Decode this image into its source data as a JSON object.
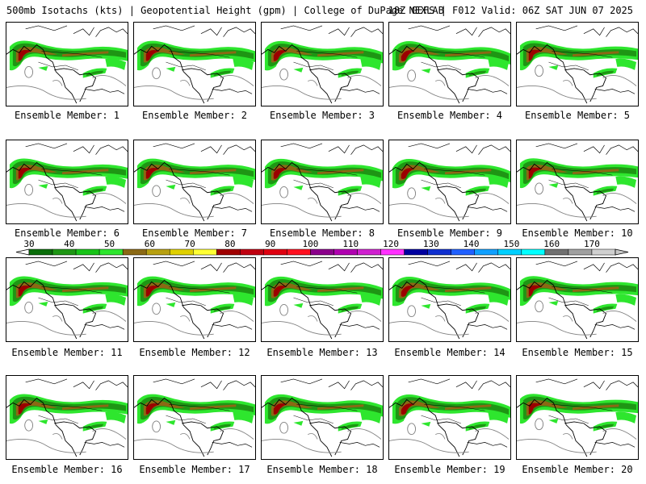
{
  "header": {
    "title": "500mb Isotachs (kts) | Geopotential Height (gpm) | College of DuPage NEXLAB",
    "run_info": "18Z GEFS | F012 Valid: 06Z SAT JUN 07 2025"
  },
  "members": [
    {
      "label": "Ensemble Member: 1"
    },
    {
      "label": "Ensemble Member: 2"
    },
    {
      "label": "Ensemble Member: 3"
    },
    {
      "label": "Ensemble Member: 4"
    },
    {
      "label": "Ensemble Member: 5"
    },
    {
      "label": "Ensemble Member: 6"
    },
    {
      "label": "Ensemble Member: 7"
    },
    {
      "label": "Ensemble Member: 8"
    },
    {
      "label": "Ensemble Member: 9"
    },
    {
      "label": "Ensemble Member: 10"
    },
    {
      "label": "Ensemble Member: 11"
    },
    {
      "label": "Ensemble Member: 12"
    },
    {
      "label": "Ensemble Member: 13"
    },
    {
      "label": "Ensemble Member: 14"
    },
    {
      "label": "Ensemble Member: 15"
    },
    {
      "label": "Ensemble Member: 16"
    },
    {
      "label": "Ensemble Member: 17"
    },
    {
      "label": "Ensemble Member: 18"
    },
    {
      "label": "Ensemble Member: 19"
    },
    {
      "label": "Ensemble Member: 20"
    }
  ],
  "colorbar": {
    "tick_labels": [
      "30",
      "40",
      "50",
      "60",
      "70",
      "80",
      "90",
      "100",
      "110",
      "120",
      "130",
      "140",
      "150",
      "160",
      "170"
    ],
    "colors": [
      "#0a6e0a",
      "#1e9614",
      "#18c418",
      "#2ee62e",
      "#8b6914",
      "#b8a010",
      "#e0d000",
      "#ffff33",
      "#a00000",
      "#c00010",
      "#e00010",
      "#ff1020",
      "#8b008b",
      "#b000b0",
      "#d020d0",
      "#ff30ff",
      "#0000a0",
      "#1030d0",
      "#2060ff",
      "#10a0ff",
      "#00d0ff",
      "#00ffff",
      "#707070",
      "#a0a0a0",
      "#d0d0d0"
    ]
  },
  "map_colors": {
    "jet_core": "#9b0000",
    "jet_mid": "#8b6914",
    "jet_outer": "#1e9614",
    "jet_edge": "#2ee62e",
    "height_contour": "#808080",
    "coastline": "#000000"
  }
}
